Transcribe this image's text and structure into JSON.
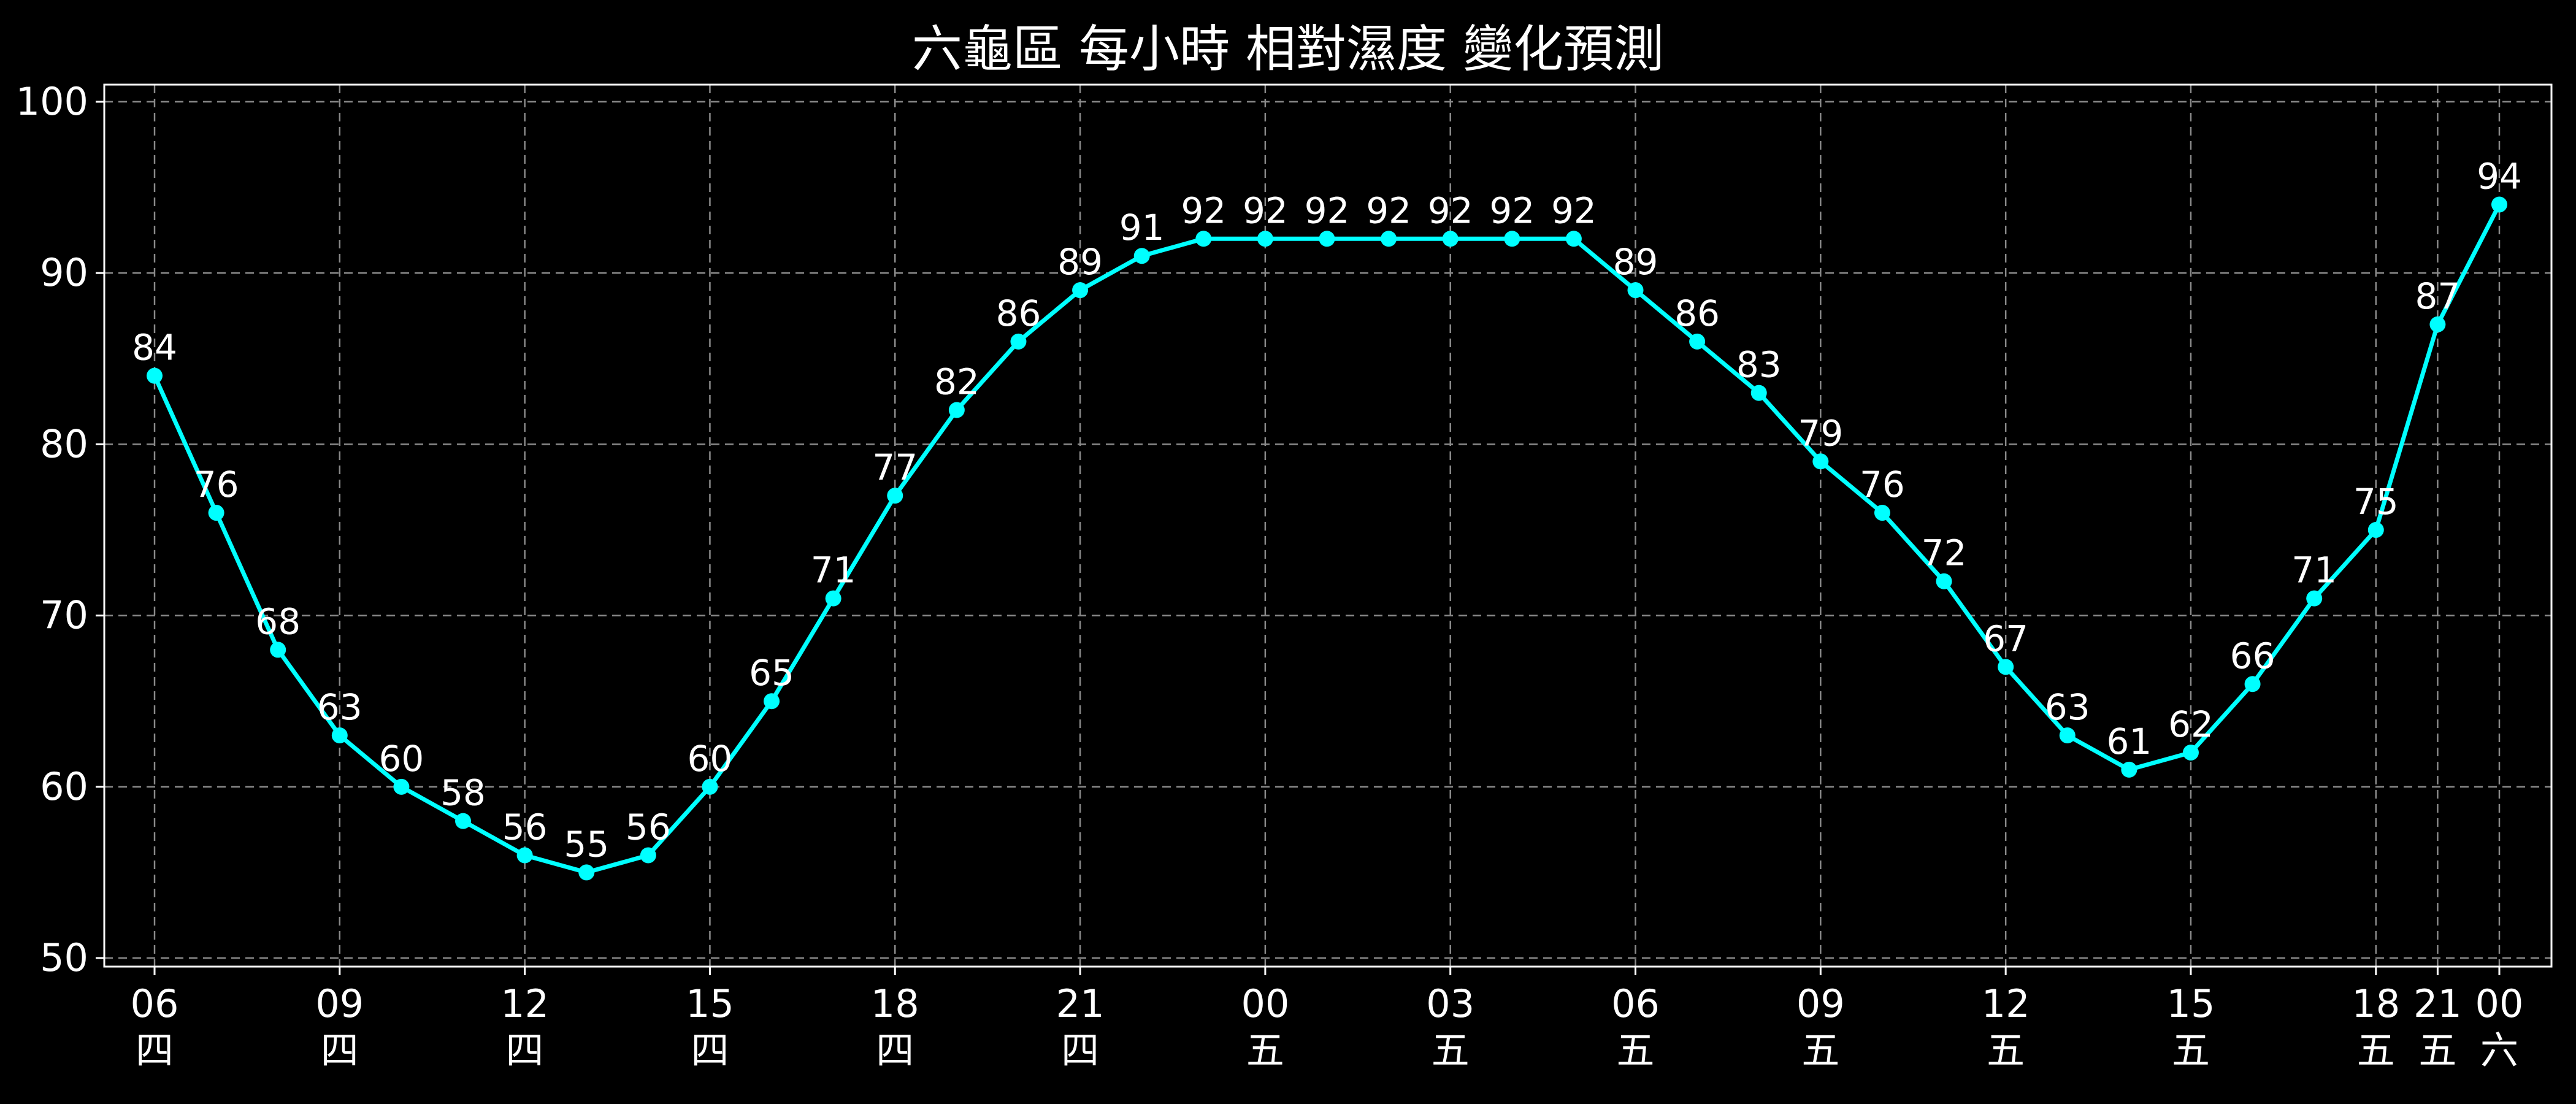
{
  "chart_data": {
    "type": "line",
    "title": "六龜區 每小時 相對濕度 變化預測",
    "xlabel": "",
    "ylabel": "",
    "ylim": [
      49.5,
      101
    ],
    "y_ticks": [
      50,
      60,
      70,
      80,
      90,
      100
    ],
    "grid": true,
    "colors": {
      "background": "#000000",
      "line": "#00ffff",
      "text": "#ffffff",
      "grid": "#8a8a8a",
      "axes": "#ffffff"
    },
    "x_ticks": [
      {
        "index": 0,
        "hour": "06",
        "day": "四"
      },
      {
        "index": 3,
        "hour": "09",
        "day": "四"
      },
      {
        "index": 6,
        "hour": "12",
        "day": "四"
      },
      {
        "index": 9,
        "hour": "15",
        "day": "四"
      },
      {
        "index": 12,
        "hour": "18",
        "day": "四"
      },
      {
        "index": 15,
        "hour": "21",
        "day": "四"
      },
      {
        "index": 18,
        "hour": "00",
        "day": "五"
      },
      {
        "index": 21,
        "hour": "03",
        "day": "五"
      },
      {
        "index": 24,
        "hour": "06",
        "day": "五"
      },
      {
        "index": 27,
        "hour": "09",
        "day": "五"
      },
      {
        "index": 30,
        "hour": "12",
        "day": "五"
      },
      {
        "index": 33,
        "hour": "15",
        "day": "五"
      },
      {
        "index": 36,
        "hour": "18",
        "day": "五"
      },
      {
        "index": 37,
        "hour": "21",
        "day": "五"
      },
      {
        "index": 38,
        "hour": "00",
        "day": "六"
      }
    ],
    "series": [
      {
        "values": [
          84,
          76,
          68,
          63,
          60,
          58,
          56,
          55,
          56,
          60,
          65,
          71,
          77,
          82,
          86,
          89,
          91,
          92,
          92,
          92,
          92,
          92,
          92,
          92,
          89,
          86,
          83,
          79,
          76,
          72,
          67,
          63,
          61,
          62,
          66,
          71,
          75,
          87,
          94
        ]
      }
    ]
  }
}
